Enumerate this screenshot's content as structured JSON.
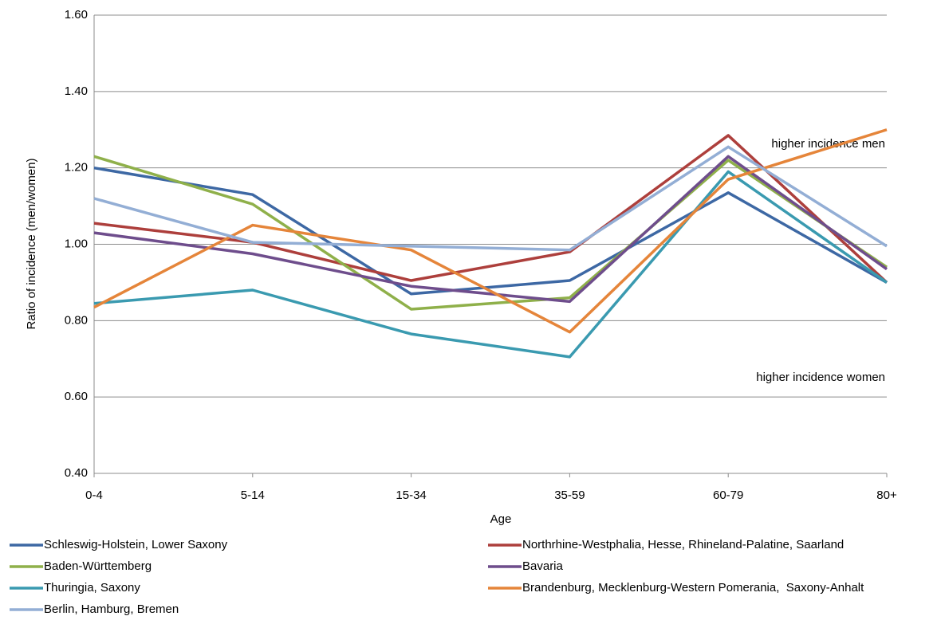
{
  "chart_data": {
    "type": "line",
    "x_label": "Age",
    "y_label": "Ratio of incidence (men/women)",
    "annotations": [
      "higher incidence men",
      "higher incidence women"
    ],
    "categories": [
      "0-4",
      "5-14",
      "15-34",
      "35-59",
      "60-79",
      "80+"
    ],
    "ylim": [
      0.4,
      1.6
    ],
    "yticks": [
      {
        "value": 0.4,
        "label": "0.40"
      },
      {
        "value": 0.6,
        "label": "0.60"
      },
      {
        "value": 0.8,
        "label": "0.80"
      },
      {
        "value": 1.0,
        "label": "1.00"
      },
      {
        "value": 1.2,
        "label": "1.20"
      },
      {
        "value": 1.4,
        "label": "1.40"
      },
      {
        "value": 1.6,
        "label": "1.60"
      }
    ],
    "grid": true,
    "series": [
      {
        "name": "Schleswig-Holstein, Lower Saxony",
        "color": "#3d68a4",
        "values": [
          1.2,
          1.13,
          0.87,
          0.905,
          1.135,
          0.9
        ]
      },
      {
        "name": "Northrhine-Westphalia, Hesse, Rhineland-Palatine, Saarland",
        "color": "#ad3f3c",
        "values": [
          1.055,
          1.005,
          0.905,
          0.98,
          1.285,
          0.9
        ]
      },
      {
        "name": "Baden-Württemberg",
        "color": "#8fb04a",
        "values": [
          1.23,
          1.105,
          0.83,
          0.86,
          1.22,
          0.94
        ]
      },
      {
        "name": "Bavaria",
        "color": "#6e4d8c",
        "values": [
          1.03,
          0.975,
          0.89,
          0.85,
          1.23,
          0.935
        ]
      },
      {
        "name": "Thuringia, Saxony",
        "color": "#3a9ab0",
        "values": [
          0.845,
          0.88,
          0.765,
          0.705,
          1.19,
          0.9
        ]
      },
      {
        "name": "Brandenburg, Mecklenburg-Western Pomerania,  Saxony-Anhalt",
        "color": "#e5853a",
        "values": [
          0.835,
          1.05,
          0.985,
          0.77,
          1.17,
          1.3
        ]
      },
      {
        "name": "Berlin, Hamburg, Bremen",
        "color": "#93aed5",
        "values": [
          1.12,
          1.005,
          0.995,
          0.985,
          1.255,
          0.995
        ]
      }
    ]
  }
}
